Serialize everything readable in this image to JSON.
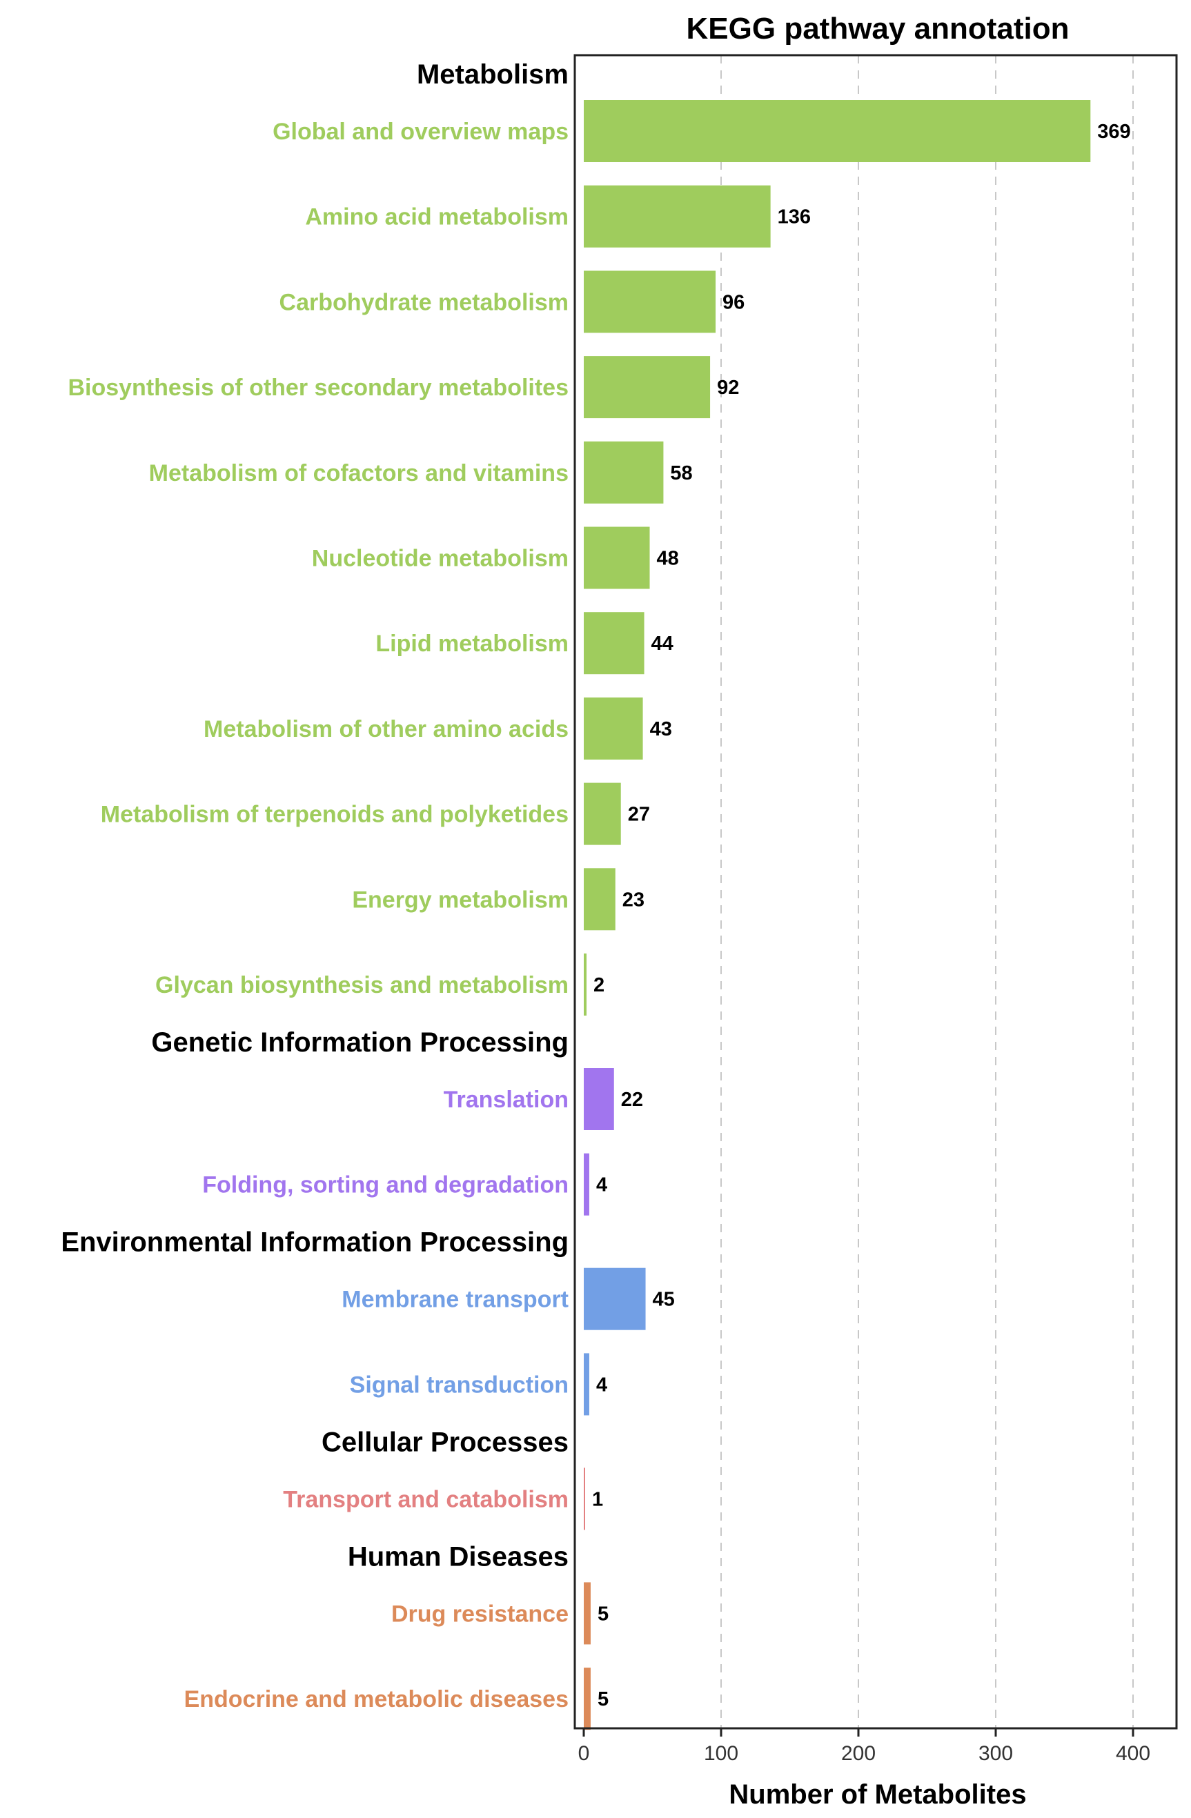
{
  "chart_data": {
    "type": "bar",
    "orientation": "horizontal",
    "title": "KEGG pathway annotation",
    "xlabel": "Number of Metabolites",
    "ylabel": "",
    "xlim": [
      0,
      430
    ],
    "xticks": [
      0,
      100,
      200,
      300,
      400
    ],
    "grid": "vertical dashed",
    "categories": [
      {
        "name": "Metabolism",
        "color": "#9fcc5d",
        "pathways": [
          {
            "label": "Global and overview maps",
            "value": 369
          },
          {
            "label": "Amino acid metabolism",
            "value": 136
          },
          {
            "label": "Carbohydrate metabolism",
            "value": 96
          },
          {
            "label": "Biosynthesis of other secondary metabolites",
            "value": 92
          },
          {
            "label": "Metabolism of cofactors and vitamins",
            "value": 58
          },
          {
            "label": "Nucleotide metabolism",
            "value": 48
          },
          {
            "label": "Lipid metabolism",
            "value": 44
          },
          {
            "label": "Metabolism of other amino acids",
            "value": 43
          },
          {
            "label": "Metabolism of terpenoids and polyketides",
            "value": 27
          },
          {
            "label": "Energy metabolism",
            "value": 23
          },
          {
            "label": "Glycan biosynthesis and metabolism",
            "value": 2
          }
        ]
      },
      {
        "name": "Genetic Information Processing",
        "color": "#a175ee",
        "pathways": [
          {
            "label": "Translation",
            "value": 22
          },
          {
            "label": "Folding, sorting and degradation",
            "value": 4
          }
        ]
      },
      {
        "name": "Environmental Information Processing",
        "color": "#729fe5",
        "pathways": [
          {
            "label": "Membrane transport",
            "value": 45
          },
          {
            "label": "Signal transduction",
            "value": 4
          }
        ]
      },
      {
        "name": "Cellular Processes",
        "color": "#e38081",
        "pathways": [
          {
            "label": "Transport and catabolism",
            "value": 1
          }
        ]
      },
      {
        "name": "Human Diseases",
        "color": "#dc8a59",
        "pathways": [
          {
            "label": "Drug resistance",
            "value": 5
          },
          {
            "label": "Endocrine and metabolic diseases",
            "value": 5
          }
        ]
      }
    ]
  }
}
